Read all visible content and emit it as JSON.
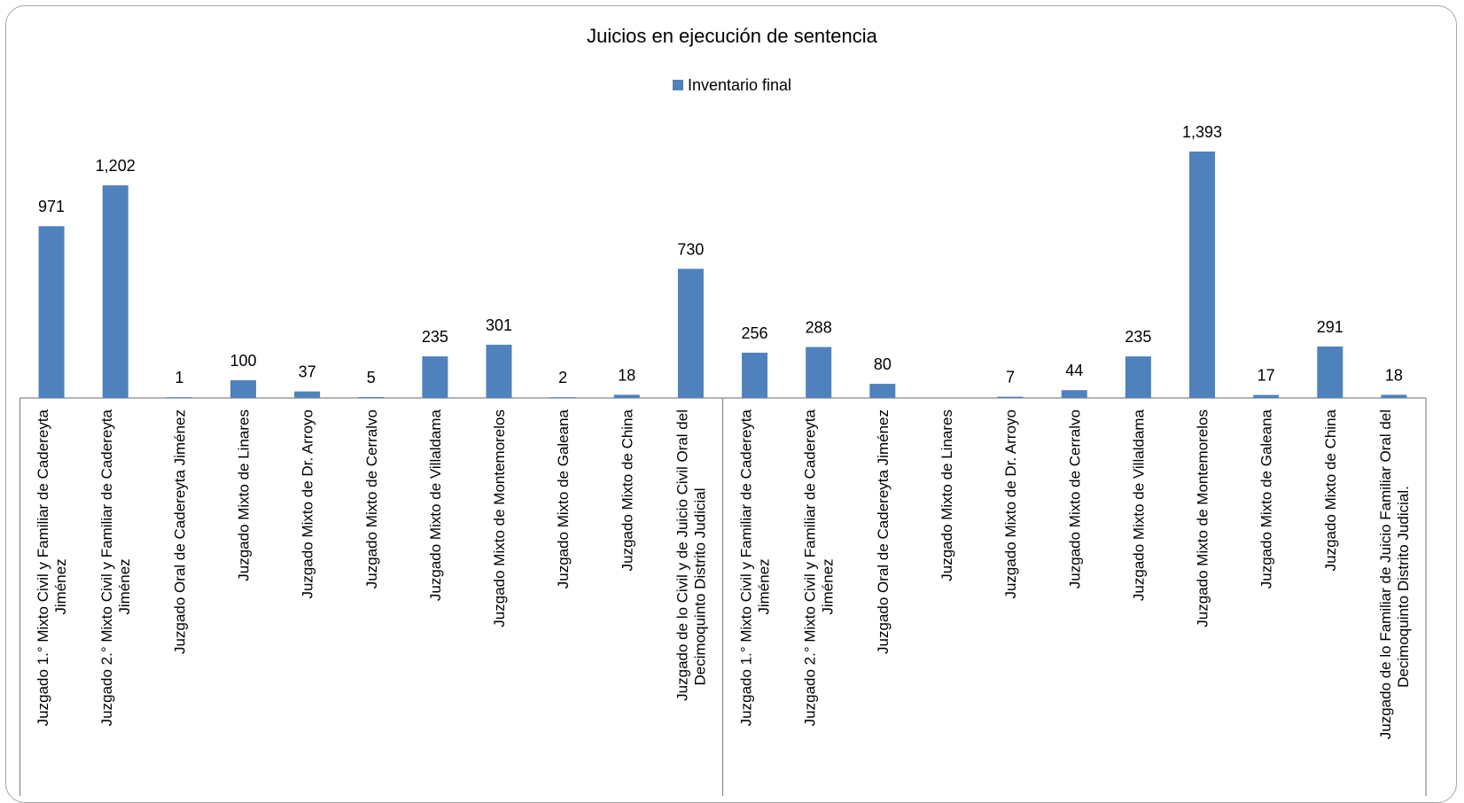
{
  "chart_data": {
    "type": "bar",
    "title": "Juicios en ejecución de sentencia",
    "legend": "top",
    "grid": false,
    "color": "#4f81bd",
    "series": [
      {
        "name": "Inventario final",
        "values": [
          971,
          1202,
          1,
          100,
          37,
          5,
          235,
          301,
          2,
          18,
          730,
          256,
          288,
          80,
          null,
          7,
          44,
          235,
          1393,
          17,
          291,
          18
        ],
        "value_labels": [
          "971",
          "1,202",
          "1",
          "100",
          "37",
          "5",
          "235",
          "301",
          "2",
          "18",
          "730",
          "256",
          "288",
          "80",
          "",
          "7",
          "44",
          "235",
          "1,393",
          "17",
          "291",
          "18"
        ]
      }
    ],
    "categories": [
      [
        "Juzgado 1.° Mixto Civil y Familiar de Cadereyta",
        "Jiménez"
      ],
      [
        "Juzgado 2.° Mixto Civil y Familiar de Cadereyta",
        "Jiménez"
      ],
      [
        "Juzgado Oral de Cadereyta Jiménez"
      ],
      [
        "Juzgado Mixto de Linares"
      ],
      [
        "Juzgado Mixto de Dr. Arroyo"
      ],
      [
        "Juzgado Mixto de Cerralvo"
      ],
      [
        "Juzgado Mixto de Villaldama"
      ],
      [
        "Juzgado Mixto de Montemorelos"
      ],
      [
        "Juzgado Mixto de Galeana"
      ],
      [
        "Juzgado Mixto de China"
      ],
      [
        "Juzgado de lo Civil y de Juicio Civil Oral del",
        "Decimoquinto Distrito Judicial"
      ],
      [
        "Juzgado 1.° Mixto Civil y Familiar de Cadereyta",
        "Jiménez"
      ],
      [
        "Juzgado 2.° Mixto Civil y Familiar de Cadereyta",
        "Jiménez"
      ],
      [
        "Juzgado Oral de Cadereyta Jiménez"
      ],
      [
        "Juzgado Mixto de Linares"
      ],
      [
        "Juzgado Mixto de Dr. Arroyo"
      ],
      [
        "Juzgado Mixto de Cerralvo"
      ],
      [
        "Juzgado Mixto de Villaldama"
      ],
      [
        "Juzgado Mixto de Montemorelos"
      ],
      [
        "Juzgado Mixto de Galeana"
      ],
      [
        "Juzgado Mixto de China"
      ],
      [
        "Juzgado de lo Familiar de Juicio Familiar Oral del",
        "Decimoquinto Distrito Judicial."
      ]
    ],
    "ylim": [
      0,
      1400
    ]
  }
}
